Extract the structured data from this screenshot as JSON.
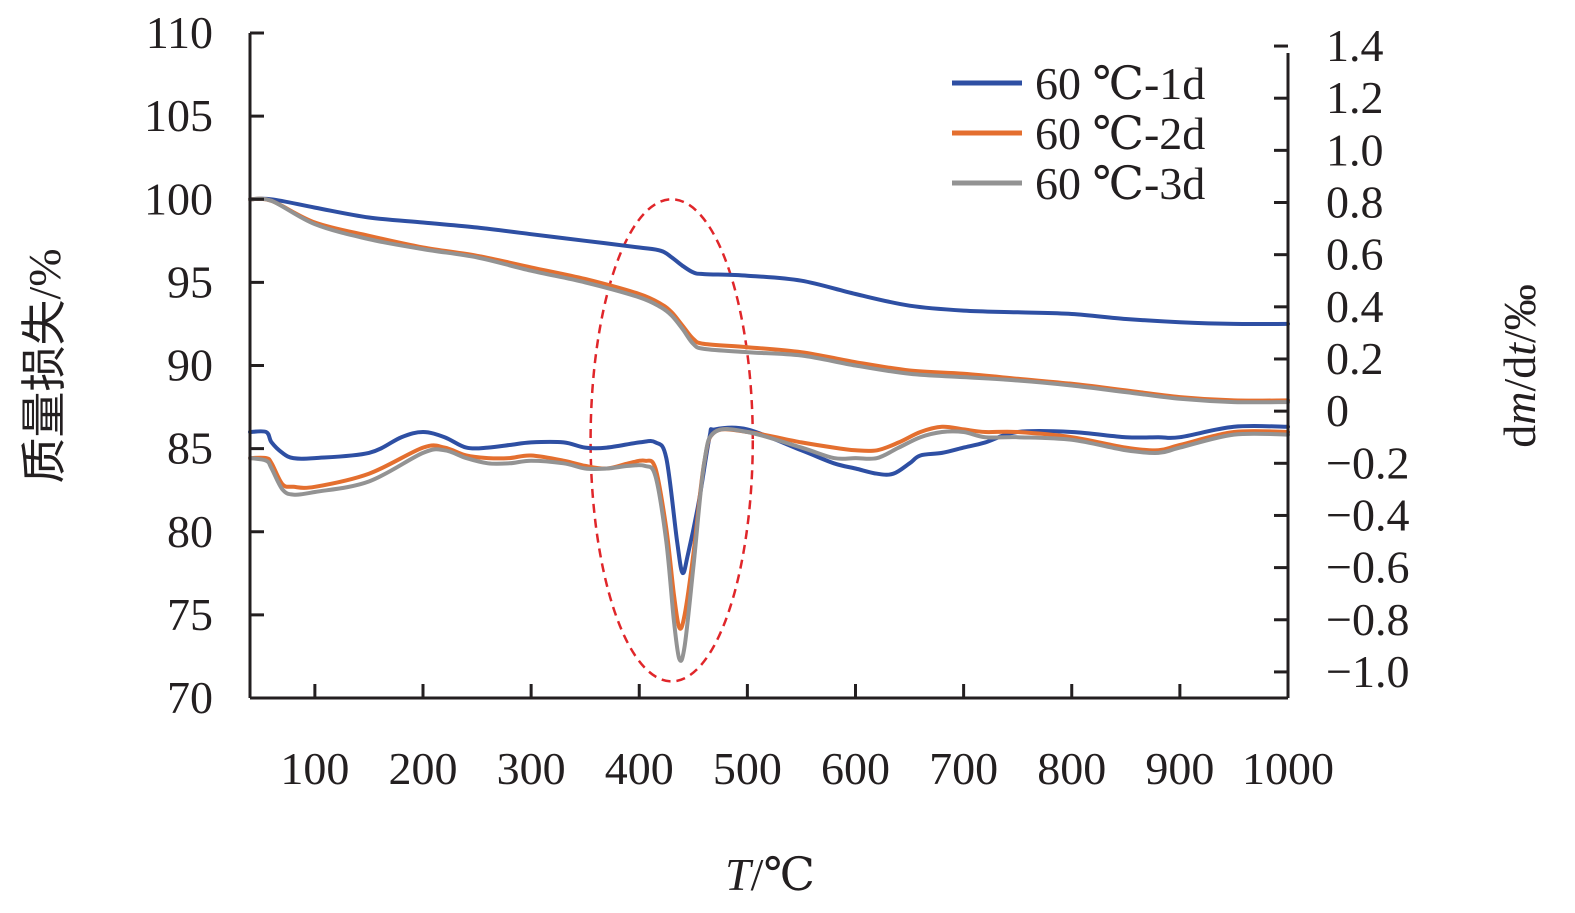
{
  "chart_data": {
    "type": "line",
    "x": {
      "label_italic": "T",
      "label_rest": "/℃",
      "range": [
        40,
        1000
      ],
      "ticks": [
        100,
        200,
        300,
        400,
        500,
        600,
        700,
        800,
        900,
        1000
      ],
      "tick_labels": [
        "100",
        "200",
        "300",
        "400",
        "500",
        "600",
        "700",
        "800",
        "900",
        "1000"
      ]
    },
    "y_left": {
      "label": "质量损失/%",
      "range": [
        70,
        110
      ],
      "ticks": [
        70,
        75,
        80,
        85,
        90,
        95,
        100,
        105,
        110
      ],
      "tick_labels": [
        "70",
        "75",
        "80",
        "85",
        "90",
        "95",
        "100",
        "105",
        "110"
      ]
    },
    "y_right": {
      "label_parts": [
        "d",
        "m",
        "/d",
        "t",
        "/‰"
      ],
      "range": [
        -1.1,
        1.45
      ],
      "ticks": [
        -1.0,
        -0.8,
        -0.6,
        -0.4,
        -0.2,
        0,
        0.2,
        0.4,
        0.6,
        0.8,
        1.0,
        1.2,
        1.4
      ],
      "tick_labels": [
        "−1.0",
        "−0.8",
        "−0.6",
        "−0.4",
        "−0.2",
        "0",
        "0.2",
        "0.4",
        "0.6",
        "0.8",
        "1.0",
        "1.2",
        "1.4"
      ]
    },
    "legend_position": "top-right",
    "grid": false,
    "highlight": {
      "shape": "dashed-ellipse",
      "color": "#e0262a",
      "x_range": [
        355,
        505
      ],
      "y_range": [
        71,
        100
      ]
    },
    "series": [
      {
        "name": "60 ℃-1d",
        "color": "#2e4fa3",
        "tg": [
          [
            40,
            100
          ],
          [
            60,
            100
          ],
          [
            100,
            99.5
          ],
          [
            150,
            98.9
          ],
          [
            200,
            98.6
          ],
          [
            250,
            98.3
          ],
          [
            300,
            97.9
          ],
          [
            350,
            97.5
          ],
          [
            400,
            97.1
          ],
          [
            420,
            96.9
          ],
          [
            430,
            96.5
          ],
          [
            440,
            96
          ],
          [
            450,
            95.6
          ],
          [
            460,
            95.5
          ],
          [
            500,
            95.4
          ],
          [
            550,
            95.1
          ],
          [
            600,
            94.3
          ],
          [
            650,
            93.6
          ],
          [
            700,
            93.3
          ],
          [
            750,
            93.2
          ],
          [
            800,
            93.1
          ],
          [
            850,
            92.8
          ],
          [
            900,
            92.6
          ],
          [
            950,
            92.5
          ],
          [
            1000,
            92.5
          ]
        ],
        "dtg": [
          [
            40,
            -0.08
          ],
          [
            55,
            -0.08
          ],
          [
            60,
            -0.12
          ],
          [
            70,
            -0.16
          ],
          [
            80,
            -0.18
          ],
          [
            100,
            -0.18
          ],
          [
            150,
            -0.16
          ],
          [
            180,
            -0.1
          ],
          [
            200,
            -0.08
          ],
          [
            220,
            -0.1
          ],
          [
            240,
            -0.14
          ],
          [
            260,
            -0.14
          ],
          [
            280,
            -0.13
          ],
          [
            300,
            -0.12
          ],
          [
            330,
            -0.12
          ],
          [
            350,
            -0.14
          ],
          [
            370,
            -0.14
          ],
          [
            400,
            -0.12
          ],
          [
            415,
            -0.12
          ],
          [
            425,
            -0.18
          ],
          [
            435,
            -0.5
          ],
          [
            440,
            -0.62
          ],
          [
            445,
            -0.55
          ],
          [
            455,
            -0.35
          ],
          [
            465,
            -0.1
          ],
          [
            470,
            -0.07
          ],
          [
            500,
            -0.07
          ],
          [
            550,
            -0.15
          ],
          [
            580,
            -0.2
          ],
          [
            600,
            -0.22
          ],
          [
            620,
            -0.24
          ],
          [
            635,
            -0.24
          ],
          [
            650,
            -0.2
          ],
          [
            660,
            -0.17
          ],
          [
            680,
            -0.16
          ],
          [
            700,
            -0.14
          ],
          [
            720,
            -0.12
          ],
          [
            750,
            -0.08
          ],
          [
            800,
            -0.08
          ],
          [
            850,
            -0.1
          ],
          [
            880,
            -0.1
          ],
          [
            900,
            -0.1
          ],
          [
            950,
            -0.06
          ],
          [
            1000,
            -0.06
          ]
        ]
      },
      {
        "name": "60 ℃-2d",
        "color": "#e46f2f",
        "tg": [
          [
            40,
            100
          ],
          [
            60,
            99.9
          ],
          [
            100,
            98.6
          ],
          [
            150,
            97.8
          ],
          [
            200,
            97.1
          ],
          [
            250,
            96.6
          ],
          [
            300,
            95.9
          ],
          [
            350,
            95.2
          ],
          [
            400,
            94.3
          ],
          [
            420,
            93.7
          ],
          [
            430,
            93.2
          ],
          [
            440,
            92.4
          ],
          [
            450,
            91.6
          ],
          [
            460,
            91.3
          ],
          [
            500,
            91.1
          ],
          [
            550,
            90.8
          ],
          [
            600,
            90.2
          ],
          [
            650,
            89.7
          ],
          [
            700,
            89.5
          ],
          [
            750,
            89.2
          ],
          [
            800,
            88.9
          ],
          [
            850,
            88.5
          ],
          [
            900,
            88.1
          ],
          [
            950,
            87.9
          ],
          [
            1000,
            87.9
          ]
        ],
        "dtg": [
          [
            40,
            -0.18
          ],
          [
            55,
            -0.18
          ],
          [
            60,
            -0.2
          ],
          [
            70,
            -0.28
          ],
          [
            80,
            -0.29
          ],
          [
            100,
            -0.29
          ],
          [
            150,
            -0.24
          ],
          [
            200,
            -0.14
          ],
          [
            220,
            -0.14
          ],
          [
            240,
            -0.17
          ],
          [
            260,
            -0.18
          ],
          [
            280,
            -0.18
          ],
          [
            300,
            -0.17
          ],
          [
            330,
            -0.19
          ],
          [
            350,
            -0.21
          ],
          [
            370,
            -0.22
          ],
          [
            390,
            -0.2
          ],
          [
            405,
            -0.19
          ],
          [
            415,
            -0.22
          ],
          [
            425,
            -0.45
          ],
          [
            432,
            -0.7
          ],
          [
            437,
            -0.83
          ],
          [
            442,
            -0.78
          ],
          [
            450,
            -0.55
          ],
          [
            460,
            -0.2
          ],
          [
            470,
            -0.08
          ],
          [
            500,
            -0.08
          ],
          [
            550,
            -0.12
          ],
          [
            580,
            -0.14
          ],
          [
            600,
            -0.15
          ],
          [
            620,
            -0.15
          ],
          [
            640,
            -0.12
          ],
          [
            660,
            -0.08
          ],
          [
            680,
            -0.06
          ],
          [
            700,
            -0.07
          ],
          [
            720,
            -0.08
          ],
          [
            750,
            -0.08
          ],
          [
            800,
            -0.1
          ],
          [
            850,
            -0.14
          ],
          [
            880,
            -0.15
          ],
          [
            900,
            -0.13
          ],
          [
            950,
            -0.08
          ],
          [
            1000,
            -0.08
          ]
        ]
      },
      {
        "name": "60 ℃-3d",
        "color": "#939393",
        "tg": [
          [
            40,
            100
          ],
          [
            60,
            99.9
          ],
          [
            100,
            98.5
          ],
          [
            150,
            97.6
          ],
          [
            200,
            97
          ],
          [
            250,
            96.5
          ],
          [
            300,
            95.7
          ],
          [
            350,
            95
          ],
          [
            400,
            94.1
          ],
          [
            420,
            93.5
          ],
          [
            430,
            93
          ],
          [
            440,
            92.2
          ],
          [
            450,
            91.3
          ],
          [
            460,
            91
          ],
          [
            500,
            90.8
          ],
          [
            550,
            90.6
          ],
          [
            600,
            90
          ],
          [
            650,
            89.5
          ],
          [
            700,
            89.3
          ],
          [
            750,
            89.1
          ],
          [
            800,
            88.8
          ],
          [
            850,
            88.4
          ],
          [
            900,
            88
          ],
          [
            950,
            87.8
          ],
          [
            1000,
            87.8
          ]
        ],
        "dtg": [
          [
            40,
            -0.18
          ],
          [
            55,
            -0.19
          ],
          [
            60,
            -0.22
          ],
          [
            70,
            -0.3
          ],
          [
            80,
            -0.32
          ],
          [
            100,
            -0.31
          ],
          [
            150,
            -0.27
          ],
          [
            200,
            -0.16
          ],
          [
            220,
            -0.15
          ],
          [
            240,
            -0.18
          ],
          [
            260,
            -0.2
          ],
          [
            280,
            -0.2
          ],
          [
            300,
            -0.19
          ],
          [
            330,
            -0.2
          ],
          [
            350,
            -0.22
          ],
          [
            370,
            -0.22
          ],
          [
            390,
            -0.21
          ],
          [
            405,
            -0.21
          ],
          [
            415,
            -0.25
          ],
          [
            425,
            -0.5
          ],
          [
            432,
            -0.8
          ],
          [
            437,
            -0.95
          ],
          [
            442,
            -0.9
          ],
          [
            450,
            -0.6
          ],
          [
            460,
            -0.2
          ],
          [
            470,
            -0.08
          ],
          [
            500,
            -0.08
          ],
          [
            550,
            -0.14
          ],
          [
            580,
            -0.18
          ],
          [
            600,
            -0.18
          ],
          [
            620,
            -0.18
          ],
          [
            640,
            -0.14
          ],
          [
            660,
            -0.1
          ],
          [
            680,
            -0.08
          ],
          [
            700,
            -0.08
          ],
          [
            720,
            -0.1
          ],
          [
            750,
            -0.1
          ],
          [
            800,
            -0.11
          ],
          [
            850,
            -0.15
          ],
          [
            880,
            -0.16
          ],
          [
            900,
            -0.14
          ],
          [
            950,
            -0.09
          ],
          [
            1000,
            -0.09
          ]
        ]
      }
    ]
  }
}
